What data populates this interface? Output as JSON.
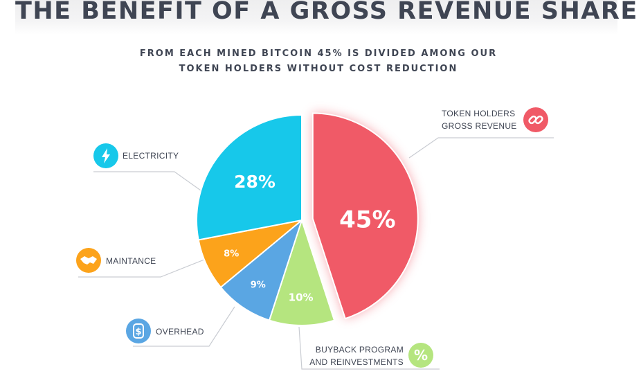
{
  "header": {
    "title": "THE BENEFIT OF A GROSS REVENUE SHARE",
    "subtitle_line1": "FROM EACH MINED BITCOIN 45% IS DIVIDED AMONG OUR",
    "subtitle_line2": "TOKEN HOLDERS WITHOUT COST REDUCTION"
  },
  "chart_data": {
    "type": "pie",
    "title": "THE BENEFIT OF A GROSS REVENUE SHARE",
    "subtitle": "FROM EACH MINED BITCOIN 45% IS DIVIDED AMONG OUR TOKEN HOLDERS WITHOUT COST REDUCTION",
    "slices": [
      {
        "label_lines": [
          "TOKEN HOLDERS",
          "GROSS REVENUE"
        ],
        "value": 45,
        "value_label": "45%",
        "color": "#f05a67",
        "icon": "link-icon",
        "exploded": true
      },
      {
        "label_lines": [
          "BUYBACK PROGRAM",
          "AND REINVESTMENTS"
        ],
        "value": 10,
        "value_label": "10%",
        "color": "#b5e57f",
        "icon": "percent-icon"
      },
      {
        "label_lines": [
          "OVERHEAD"
        ],
        "value": 9,
        "value_label": "9%",
        "color": "#5aa6e3",
        "icon": "dollar-icon"
      },
      {
        "label_lines": [
          "MAINTANCE"
        ],
        "value": 8,
        "value_label": "8%",
        "color": "#fca31b",
        "icon": "handshake-icon"
      },
      {
        "label_lines": [
          "ELECTRICITY"
        ],
        "value": 28,
        "value_label": "28%",
        "color": "#17c8ea",
        "icon": "lightning-icon"
      }
    ]
  }
}
